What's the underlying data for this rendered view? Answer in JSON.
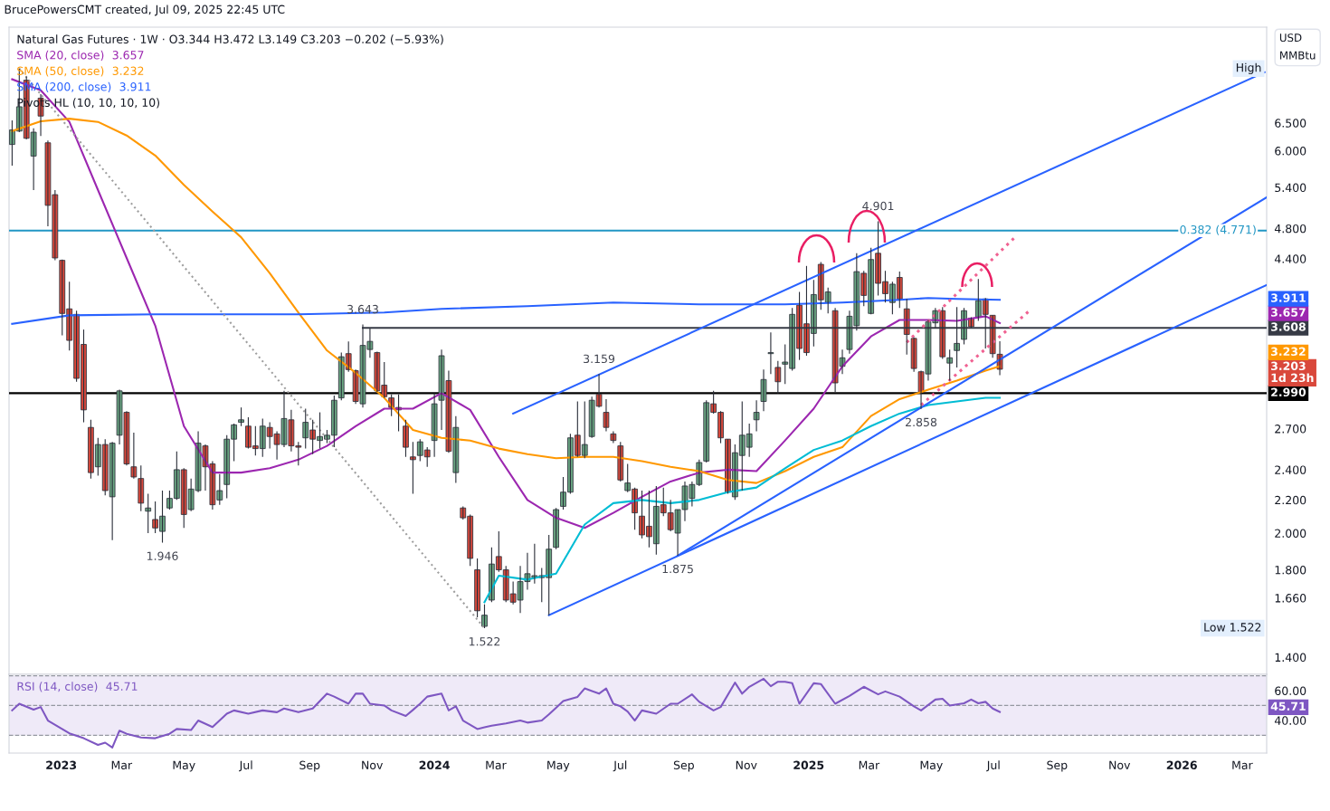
{
  "chart_data": [
    {
      "type": "candlestick",
      "title": "Natural Gas Futures · 1W · O3.344 H3.472 L3.149 C3.203 −0.202 (−5.93%)",
      "ylabel": "USD\nMMBtu",
      "log": true,
      "legend": "top left",
      "tick_labels": "y",
      "xlim": [
        "2022-11-11",
        "2026-03-25"
      ],
      "ylim": [
        1.333,
        8.56
      ],
      "yticks": [
        {
          "value": 6.5,
          "label": "6.500"
        },
        {
          "value": 6,
          "label": "6.000"
        },
        {
          "value": 5.4,
          "label": "5.400"
        },
        {
          "value": 4.8,
          "label": "4.800"
        },
        {
          "value": 4.4,
          "label": "4.400"
        },
        {
          "value": 2.7,
          "label": "2.700"
        },
        {
          "value": 2.4,
          "label": "2.400"
        },
        {
          "value": 2.2,
          "label": "2.200"
        },
        {
          "value": 2.0,
          "label": "2.000"
        },
        {
          "value": 1.8,
          "label": "1.800"
        },
        {
          "value": 1.66,
          "label": "1.660"
        },
        {
          "value": 1.4,
          "label": "1.400"
        }
      ],
      "x": [
        "2022-11-14",
        "2022-11-21",
        "2022-11-28",
        "2022-12-05",
        "2022-12-12",
        "2022-12-19",
        "2022-12-26",
        "2023-01-02",
        "2023-01-09",
        "2023-01-16",
        "2023-01-23",
        "2023-01-30",
        "2023-02-06",
        "2023-02-13",
        "2023-02-20",
        "2023-02-27",
        "2023-03-06",
        "2023-03-13",
        "2023-03-20",
        "2023-03-27",
        "2023-04-03",
        "2023-04-10",
        "2023-04-17",
        "2023-04-24",
        "2023-05-01",
        "2023-05-08",
        "2023-05-15",
        "2023-05-22",
        "2023-05-29",
        "2023-06-05",
        "2023-06-12",
        "2023-06-19",
        "2023-06-26",
        "2023-07-03",
        "2023-07-10",
        "2023-07-17",
        "2023-07-24",
        "2023-07-31",
        "2023-08-07",
        "2023-08-14",
        "2023-08-21",
        "2023-08-28",
        "2023-09-04",
        "2023-09-11",
        "2023-09-18",
        "2023-09-25",
        "2023-10-02",
        "2023-10-09",
        "2023-10-16",
        "2023-10-23",
        "2023-10-30",
        "2023-11-06",
        "2023-11-13",
        "2023-11-20",
        "2023-11-27",
        "2023-12-04",
        "2023-12-11",
        "2023-12-18",
        "2023-12-25",
        "2024-01-01",
        "2024-01-08",
        "2024-01-15",
        "2024-01-22",
        "2024-01-29",
        "2024-02-05",
        "2024-02-12",
        "2024-02-19",
        "2024-02-26",
        "2024-03-04",
        "2024-03-11",
        "2024-03-18",
        "2024-03-25",
        "2024-04-01",
        "2024-04-08",
        "2024-04-15",
        "2024-04-22",
        "2024-04-29",
        "2024-05-06",
        "2024-05-13",
        "2024-05-20",
        "2024-05-27",
        "2024-06-03",
        "2024-06-10",
        "2024-06-17",
        "2024-06-24",
        "2024-07-01",
        "2024-07-08",
        "2024-07-15",
        "2024-07-22",
        "2024-07-29",
        "2024-08-05",
        "2024-08-12",
        "2024-08-19",
        "2024-08-26",
        "2024-09-02",
        "2024-09-09",
        "2024-09-16",
        "2024-09-23",
        "2024-09-30",
        "2024-10-07",
        "2024-10-14",
        "2024-10-21",
        "2024-10-28",
        "2024-11-04",
        "2024-11-11",
        "2024-11-18",
        "2024-11-25",
        "2024-12-02",
        "2024-12-09",
        "2024-12-16",
        "2024-12-23",
        "2024-12-30",
        "2025-01-06",
        "2025-01-13",
        "2025-01-20",
        "2025-01-27",
        "2025-02-03",
        "2025-02-10",
        "2025-02-17",
        "2025-02-24",
        "2025-03-03",
        "2025-03-10",
        "2025-03-17",
        "2025-03-24",
        "2025-03-31",
        "2025-04-07",
        "2025-04-14",
        "2025-04-21",
        "2025-04-28",
        "2025-05-05",
        "2025-05-12",
        "2025-05-19",
        "2025-05-26",
        "2025-06-02",
        "2025-06-09",
        "2025-06-16",
        "2025-06-23",
        "2025-06-30",
        "2025-07-07"
      ],
      "ohlc": [
        [
          6.11,
          6.55,
          5.75,
          6.37
        ],
        [
          6.35,
          7.6,
          6.33,
          6.81
        ],
        [
          7.35,
          7.43,
          6.2,
          6.22
        ],
        [
          5.91,
          6.4,
          5.36,
          6.33
        ],
        [
          6.98,
          7.06,
          6.26,
          6.63
        ],
        [
          6.14,
          6.18,
          4.83,
          5.13
        ],
        [
          5.29,
          5.36,
          4.38,
          4.41
        ],
        [
          4.38,
          4.39,
          3.53,
          3.76
        ],
        [
          3.81,
          4.12,
          3.38,
          3.48
        ],
        [
          3.75,
          3.79,
          3.09,
          3.12
        ],
        [
          3.44,
          3.59,
          2.75,
          2.85
        ],
        [
          2.71,
          2.77,
          2.34,
          2.38
        ],
        [
          2.42,
          2.63,
          2.36,
          2.58
        ],
        [
          2.58,
          2.62,
          2.23,
          2.26
        ],
        [
          2.22,
          2.6,
          1.96,
          2.59
        ],
        [
          2.65,
          3.02,
          2.58,
          3.01
        ],
        [
          2.83,
          2.84,
          2.43,
          2.44
        ],
        [
          2.42,
          2.67,
          2.34,
          2.35
        ],
        [
          2.34,
          2.43,
          2.13,
          2.18
        ],
        [
          2.13,
          2.24,
          2.0,
          2.15
        ],
        [
          2.08,
          2.19,
          2.0,
          2.03
        ],
        [
          2.01,
          2.26,
          1.946,
          2.1
        ],
        [
          2.15,
          2.26,
          2.14,
          2.21
        ],
        [
          2.21,
          2.53,
          2.2,
          2.4
        ],
        [
          2.4,
          2.41,
          2.03,
          2.11
        ],
        [
          2.14,
          2.34,
          2.13,
          2.27
        ],
        [
          2.26,
          2.68,
          2.25,
          2.59
        ],
        [
          2.57,
          2.58,
          2.26,
          2.42
        ],
        [
          2.44,
          2.46,
          2.14,
          2.17
        ],
        [
          2.2,
          2.37,
          2.17,
          2.26
        ],
        [
          2.3,
          2.65,
          2.21,
          2.62
        ],
        [
          2.62,
          2.74,
          2.46,
          2.73
        ],
        [
          2.75,
          2.87,
          2.72,
          2.77
        ],
        [
          2.72,
          2.79,
          2.55,
          2.56
        ],
        [
          2.57,
          2.72,
          2.5,
          2.55
        ],
        [
          2.55,
          2.78,
          2.49,
          2.72
        ],
        [
          2.71,
          2.75,
          2.55,
          2.64
        ],
        [
          2.66,
          2.68,
          2.47,
          2.58
        ],
        [
          2.58,
          3.01,
          2.56,
          2.78
        ],
        [
          2.77,
          2.85,
          2.53,
          2.57
        ],
        [
          2.57,
          2.6,
          2.43,
          2.56
        ],
        [
          2.63,
          2.86,
          2.55,
          2.75
        ],
        [
          2.69,
          2.77,
          2.51,
          2.62
        ],
        [
          2.61,
          2.83,
          2.55,
          2.64
        ],
        [
          2.62,
          2.69,
          2.59,
          2.65
        ],
        [
          2.65,
          2.97,
          2.56,
          2.93
        ],
        [
          2.95,
          3.36,
          2.93,
          3.32
        ],
        [
          3.35,
          3.47,
          3.18,
          3.2
        ],
        [
          3.19,
          3.2,
          2.9,
          2.92
        ],
        [
          2.9,
          3.643,
          2.87,
          3.43
        ],
        [
          3.39,
          3.6,
          3.31,
          3.47
        ],
        [
          3.36,
          3.37,
          3.0,
          3.01
        ],
        [
          3.06,
          3.27,
          2.95,
          2.96
        ],
        [
          2.95,
          2.98,
          2.8,
          2.87
        ],
        [
          2.87,
          2.98,
          2.68,
          2.85
        ],
        [
          2.72,
          2.77,
          2.49,
          2.56
        ],
        [
          2.49,
          2.6,
          2.24,
          2.47
        ],
        [
          2.5,
          2.62,
          2.46,
          2.6
        ],
        [
          2.54,
          2.56,
          2.42,
          2.49
        ],
        [
          2.61,
          2.99,
          2.49,
          2.9
        ],
        [
          2.93,
          3.39,
          2.69,
          3.33
        ],
        [
          3.1,
          3.19,
          2.52,
          2.53
        ],
        [
          2.38,
          2.8,
          2.31,
          2.71
        ],
        [
          2.15,
          2.16,
          2.08,
          2.09
        ],
        [
          2.1,
          2.11,
          1.82,
          1.86
        ],
        [
          1.8,
          1.86,
          1.57,
          1.6
        ],
        [
          1.53,
          1.63,
          1.522,
          1.58
        ],
        [
          1.65,
          1.92,
          1.64,
          1.83
        ],
        [
          1.87,
          2.01,
          1.79,
          1.8
        ],
        [
          1.8,
          1.82,
          1.64,
          1.65
        ],
        [
          1.68,
          1.74,
          1.63,
          1.64
        ],
        [
          1.65,
          1.82,
          1.59,
          1.74
        ],
        [
          1.74,
          1.89,
          1.7,
          1.78
        ],
        [
          1.76,
          1.94,
          1.73,
          1.77
        ],
        [
          1.77,
          1.81,
          1.64,
          1.76
        ],
        [
          1.76,
          1.99,
          1.58,
          1.91
        ],
        [
          1.92,
          2.15,
          1.91,
          2.14
        ],
        [
          2.16,
          2.35,
          2.14,
          2.25
        ],
        [
          2.25,
          2.66,
          2.24,
          2.63
        ],
        [
          2.65,
          2.92,
          2.49,
          2.5
        ],
        [
          2.5,
          2.92,
          2.48,
          2.58
        ],
        [
          2.64,
          2.96,
          2.63,
          2.93
        ],
        [
          2.98,
          3.159,
          2.87,
          2.88
        ],
        [
          2.83,
          2.94,
          2.68,
          2.71
        ],
        [
          2.66,
          2.68,
          2.59,
          2.61
        ],
        [
          2.57,
          2.6,
          2.32,
          2.33
        ],
        [
          2.26,
          2.44,
          2.25,
          2.31
        ],
        [
          2.27,
          2.28,
          2.02,
          2.12
        ],
        [
          2.1,
          2.26,
          1.97,
          1.99
        ],
        [
          2.04,
          2.26,
          1.92,
          1.98
        ],
        [
          1.94,
          2.29,
          1.88,
          2.16
        ],
        [
          2.17,
          2.28,
          2.1,
          2.12
        ],
        [
          2.12,
          2.2,
          2.01,
          2.02
        ],
        [
          2.0,
          2.14,
          1.875,
          2.14
        ],
        [
          2.14,
          2.32,
          2.07,
          2.29
        ],
        [
          2.21,
          2.32,
          2.16,
          2.3
        ],
        [
          2.3,
          2.47,
          2.29,
          2.45
        ],
        [
          2.46,
          2.93,
          2.45,
          2.91
        ],
        [
          2.9,
          3.01,
          2.82,
          2.83
        ],
        [
          2.83,
          2.84,
          2.59,
          2.63
        ],
        [
          2.62,
          2.62,
          2.24,
          2.25
        ],
        [
          2.22,
          2.58,
          2.2,
          2.52
        ],
        [
          2.5,
          2.92,
          2.26,
          2.65
        ],
        [
          2.56,
          2.74,
          2.49,
          2.66
        ],
        [
          2.77,
          2.93,
          2.68,
          2.83
        ],
        [
          2.92,
          3.2,
          2.84,
          3.11
        ],
        [
          3.35,
          3.56,
          3.16,
          3.36
        ],
        [
          3.22,
          3.28,
          2.99,
          3.09
        ],
        [
          3.25,
          3.44,
          3.07,
          3.27
        ],
        [
          3.21,
          3.82,
          3.19,
          3.75
        ],
        [
          3.85,
          4.0,
          3.29,
          3.4
        ],
        [
          3.65,
          4.31,
          3.33,
          3.36
        ],
        [
          3.55,
          4.14,
          3.42,
          3.97
        ],
        [
          4.33,
          4.36,
          3.8,
          3.91
        ],
        [
          3.88,
          4.05,
          3.76,
          4.0
        ],
        [
          3.79,
          3.82,
          3.0,
          3.08
        ],
        [
          3.23,
          3.39,
          3.16,
          3.31
        ],
        [
          3.39,
          3.79,
          3.35,
          3.73
        ],
        [
          3.63,
          4.47,
          3.58,
          4.24
        ],
        [
          4.22,
          4.25,
          3.84,
          3.96
        ],
        [
          3.76,
          4.54,
          3.75,
          4.39
        ],
        [
          4.47,
          4.901,
          3.96,
          4.1
        ],
        [
          4.12,
          4.25,
          3.88,
          3.98
        ],
        [
          3.88,
          4.12,
          3.75,
          4.09
        ],
        [
          4.17,
          4.24,
          3.82,
          3.92
        ],
        [
          3.81,
          3.92,
          3.34,
          3.54
        ],
        [
          3.5,
          3.51,
          3.18,
          3.21
        ],
        [
          3.18,
          3.19,
          2.858,
          3.0
        ],
        [
          3.16,
          3.69,
          3.1,
          3.67
        ],
        [
          3.66,
          3.82,
          3.61,
          3.79
        ],
        [
          3.79,
          3.83,
          3.3,
          3.32
        ],
        [
          3.26,
          3.39,
          3.1,
          3.31
        ],
        [
          3.38,
          3.83,
          3.22,
          3.45
        ],
        [
          3.49,
          3.82,
          3.44,
          3.79
        ],
        [
          3.71,
          3.72,
          3.61,
          3.62
        ],
        [
          3.72,
          4.15,
          3.68,
          3.9
        ],
        [
          3.92,
          3.93,
          3.4,
          3.75
        ],
        [
          3.74,
          3.74,
          3.31,
          3.35
        ],
        [
          3.344,
          3.472,
          3.149,
          3.203
        ]
      ],
      "value_labels": [
        null,
        null,
        null,
        null,
        null,
        null,
        null,
        null,
        null,
        null,
        null,
        null,
        null,
        null,
        null,
        null,
        null,
        null,
        null,
        null,
        null,
        null,
        null,
        null,
        null,
        null,
        null,
        null,
        null,
        null,
        null,
        null,
        null,
        null,
        null,
        null,
        null,
        null,
        null,
        null,
        null,
        null,
        null,
        null,
        null,
        null,
        null,
        null,
        null,
        null,
        null,
        null,
        null,
        null,
        null,
        null,
        null,
        null,
        null,
        null,
        null,
        null,
        null,
        null,
        null,
        null,
        null,
        null,
        null,
        null,
        null,
        null,
        null,
        null,
        null,
        null,
        null,
        null,
        null,
        null,
        null,
        null,
        null,
        null,
        null,
        null,
        null,
        null,
        null,
        null,
        null,
        null,
        null,
        null,
        null,
        null,
        null,
        null,
        null,
        null,
        null,
        null,
        null,
        null,
        null,
        null,
        null,
        null,
        null,
        null,
        null,
        null,
        null,
        null,
        null,
        null,
        null,
        null,
        null,
        null,
        null,
        null,
        null,
        null,
        null,
        null,
        null,
        null,
        null,
        null,
        null,
        null,
        null,
        null,
        null,
        null,
        null,
        null,
        "3.203\n1d 23h"
      ],
      "series": [
        {
          "type": "line",
          "name": "SMA (20, close)",
          "color": "#9c27b0",
          "x": [
            "2022-11-14",
            "2022-12-12",
            "2023-01-09",
            "2023-02-06",
            "2023-03-06",
            "2023-04-03",
            "2023-05-01",
            "2023-05-29",
            "2023-06-26",
            "2023-07-24",
            "2023-08-21",
            "2023-09-18",
            "2023-10-16",
            "2023-11-13",
            "2023-12-11",
            "2024-01-08",
            "2024-02-05",
            "2024-03-04",
            "2024-04-01",
            "2024-04-29",
            "2024-05-27",
            "2024-06-24",
            "2024-07-22",
            "2024-08-19",
            "2024-09-16",
            "2024-10-14",
            "2024-11-11",
            "2024-12-09",
            "2025-01-06",
            "2025-02-03",
            "2025-03-03",
            "2025-03-31",
            "2025-04-28",
            "2025-05-26",
            "2025-06-23",
            "2025-07-07"
          ],
          "values": [
            7.37,
            7.14,
            6.52,
            5.36,
            4.41,
            3.63,
            2.72,
            2.38,
            2.38,
            2.41,
            2.47,
            2.57,
            2.72,
            2.86,
            2.86,
            2.99,
            2.85,
            2.49,
            2.2,
            2.09,
            2.03,
            2.12,
            2.22,
            2.32,
            2.38,
            2.4,
            2.39,
            2.61,
            2.86,
            3.23,
            3.52,
            3.69,
            3.69,
            3.68,
            3.73,
            3.657
          ]
        },
        {
          "type": "line",
          "name": "SMA (50, close)",
          "color": "#ff9800",
          "x": [
            "2022-11-14",
            "2022-12-12",
            "2023-01-09",
            "2023-02-06",
            "2023-03-06",
            "2023-04-03",
            "2023-05-01",
            "2023-05-29",
            "2023-06-26",
            "2023-07-24",
            "2023-08-21",
            "2023-09-18",
            "2023-10-16",
            "2023-11-13",
            "2023-12-11",
            "2024-01-08",
            "2024-02-05",
            "2024-03-04",
            "2024-04-01",
            "2024-04-29",
            "2024-05-27",
            "2024-06-24",
            "2024-07-22",
            "2024-08-19",
            "2024-09-16",
            "2024-10-14",
            "2024-11-11",
            "2024-12-09",
            "2025-01-06",
            "2025-02-03",
            "2025-03-03",
            "2025-03-31",
            "2025-04-28",
            "2025-05-26",
            "2025-06-23",
            "2025-07-07"
          ],
          "values": [
            6.35,
            6.53,
            6.58,
            6.52,
            6.27,
            5.92,
            5.44,
            5.04,
            4.68,
            4.22,
            3.77,
            3.38,
            3.17,
            2.95,
            2.69,
            2.63,
            2.61,
            2.55,
            2.51,
            2.48,
            2.49,
            2.49,
            2.46,
            2.42,
            2.39,
            2.33,
            2.31,
            2.39,
            2.49,
            2.56,
            2.8,
            2.94,
            3.02,
            3.1,
            3.19,
            3.232
          ]
        },
        {
          "type": "line",
          "name": "SMA (200, close)",
          "color": "#2962ff",
          "x": [
            "2022-11-14",
            "2023-01-09",
            "2023-04-03",
            "2023-08-21",
            "2023-11-13",
            "2024-01-08",
            "2024-04-01",
            "2024-06-24",
            "2024-09-16",
            "2024-12-09",
            "2025-02-03",
            "2025-03-31",
            "2025-04-28",
            "2025-05-26",
            "2025-07-07"
          ],
          "values": [
            3.65,
            3.74,
            3.75,
            3.75,
            3.77,
            3.81,
            3.84,
            3.88,
            3.86,
            3.86,
            3.88,
            3.91,
            3.93,
            3.92,
            3.911
          ]
        },
        {
          "type": "line",
          "color": "#00bcd4",
          "x": [
            "2024-02-19",
            "2024-03-04",
            "2024-04-01",
            "2024-04-29",
            "2024-05-27",
            "2024-06-24",
            "2024-07-22",
            "2024-08-19",
            "2024-09-16",
            "2024-10-14",
            "2024-11-11",
            "2024-12-09",
            "2025-01-06",
            "2025-02-03",
            "2025-03-03",
            "2025-03-31",
            "2025-04-28",
            "2025-05-26",
            "2025-06-23",
            "2025-07-07"
          ],
          "values": [
            1.64,
            1.77,
            1.75,
            1.78,
            2.05,
            2.18,
            2.2,
            2.18,
            2.2,
            2.25,
            2.28,
            2.41,
            2.54,
            2.61,
            2.72,
            2.82,
            2.89,
            2.92,
            2.95,
            2.95
          ]
        },
        {
          "type": "line",
          "color": "#363a45",
          "x": [
            "2023-10-23",
            "2026-03-25"
          ],
          "values": [
            3.608,
            3.608
          ],
          "value_labels": [
            null,
            "3.608"
          ]
        },
        {
          "type": "line",
          "color": "#2962ff",
          "x": [
            "2024-03-18",
            "2026-03-23"
          ],
          "values": [
            2.82,
            7.52
          ]
        },
        {
          "type": "line",
          "color": "#2962ff",
          "x": [
            "2024-04-22",
            "2026-03-25"
          ],
          "values": [
            1.58,
            4.08
          ]
        },
        {
          "type": "line",
          "color": "#2962ff",
          "x": [
            "2024-08-26",
            "2026-03-25"
          ],
          "values": [
            1.875,
            5.25
          ]
        },
        {
          "type": "line",
          "color": "#9e9e9e",
          "line_style": "dotted",
          "x": [
            "2022-11-21",
            "2024-02-19"
          ],
          "values": [
            7.6,
            1.522
          ]
        },
        {
          "type": "line",
          "color": "#f06292",
          "line_style": "dotted",
          "x": [
            "2025-04-07",
            "2025-07-21"
          ],
          "values": [
            3.46,
            4.67
          ]
        },
        {
          "type": "line",
          "color": "#f06292",
          "line_style": "dotted",
          "x": [
            "2025-04-21",
            "2025-08-04"
          ],
          "values": [
            2.89,
            3.78
          ]
        }
      ],
      "ref_lines": [
        {
          "axis": "y",
          "value": 2.99,
          "label": "2.990",
          "color": "#000000"
        },
        {
          "axis": "y",
          "value": 4.771,
          "label": "0.382 (4.771)",
          "color": "#2196c4"
        }
      ],
      "annotations": [
        "BrucePowersCMT created, Jul 09, 2025 22:45 UTC",
        "Pivots HL (10, 10, 10, 10)",
        "High",
        "Low 1.522",
        "3.657",
        "3.232",
        "3.911",
        {
          "text": "3.643",
          "x": "2023-10-23",
          "y": 3.643
        },
        {
          "text": "3.159",
          "x": "2024-06-10",
          "y": 3.159
        },
        {
          "text": "4.901",
          "x": "2025-03-10",
          "y": 4.901
        },
        {
          "text": "1.946",
          "x": "2023-04-10",
          "y": 1.946
        },
        {
          "text": "1.522",
          "x": "2024-02-19",
          "y": 1.522
        },
        {
          "text": "1.875",
          "x": "2024-08-26",
          "y": 1.875
        },
        {
          "text": "2.858",
          "x": "2025-04-21",
          "y": 2.858
        }
      ]
    },
    {
      "type": "line",
      "legend": "top left",
      "xlim": [
        "2022-11-11",
        "2026-03-25"
      ],
      "ylim": [
        18,
        71
      ],
      "yticks": [
        {
          "value": 60,
          "label": "60.00"
        },
        {
          "value": 40,
          "label": "40.00"
        }
      ],
      "xticks": [
        {
          "value": "2023-01-01",
          "label": "2023"
        },
        {
          "value": "2023-03-01",
          "label": "Mar"
        },
        {
          "value": "2023-05-01",
          "label": "May"
        },
        {
          "value": "2023-07-01",
          "label": "Jul"
        },
        {
          "value": "2023-09-01",
          "label": "Sep"
        },
        {
          "value": "2023-11-01",
          "label": "Nov"
        },
        {
          "value": "2024-01-01",
          "label": "2024"
        },
        {
          "value": "2024-03-01",
          "label": "Mar"
        },
        {
          "value": "2024-05-01",
          "label": "May"
        },
        {
          "value": "2024-07-01",
          "label": "Jul"
        },
        {
          "value": "2024-09-01",
          "label": "Sep"
        },
        {
          "value": "2024-11-01",
          "label": "Nov"
        },
        {
          "value": "2025-01-01",
          "label": "2025"
        },
        {
          "value": "2025-03-01",
          "label": "Mar"
        },
        {
          "value": "2025-05-01",
          "label": "May"
        },
        {
          "value": "2025-07-01",
          "label": "Jul"
        },
        {
          "value": "2025-09-01",
          "label": "Sep"
        },
        {
          "value": "2025-11-01",
          "label": "Nov"
        },
        {
          "value": "2026-01-01",
          "label": "2026"
        },
        {
          "value": "2026-03-01",
          "label": "Mar"
        }
      ],
      "bands": [
        {
          "axis": "y",
          "from": 30,
          "to": 70,
          "color": "#efeaf8"
        }
      ],
      "ref_lines": [
        {
          "axis": "y",
          "value": 70,
          "color": "#9598a1",
          "line_style": "dashed"
        },
        {
          "axis": "y",
          "value": 50,
          "color": "#9598a1",
          "line_style": "dashed"
        },
        {
          "axis": "y",
          "value": 30,
          "color": "#9598a1",
          "line_style": "dashed"
        }
      ],
      "series": [
        {
          "name": "RSI (14, close)",
          "color": "#7e57c2",
          "x": [
            "2022-11-14",
            "2022-11-21",
            "2022-12-05",
            "2022-12-12",
            "2022-12-19",
            "2023-01-09",
            "2023-01-23",
            "2023-02-06",
            "2023-02-13",
            "2023-02-20",
            "2023-02-27",
            "2023-03-06",
            "2023-03-20",
            "2023-04-03",
            "2023-04-17",
            "2023-04-24",
            "2023-05-08",
            "2023-05-15",
            "2023-05-29",
            "2023-06-12",
            "2023-06-19",
            "2023-07-03",
            "2023-07-17",
            "2023-07-31",
            "2023-08-07",
            "2023-08-21",
            "2023-09-04",
            "2023-09-18",
            "2023-09-25",
            "2023-10-09",
            "2023-10-16",
            "2023-10-23",
            "2023-10-30",
            "2023-11-13",
            "2023-11-20",
            "2023-12-04",
            "2023-12-11",
            "2023-12-18",
            "2023-12-25",
            "2024-01-08",
            "2024-01-15",
            "2024-01-22",
            "2024-01-29",
            "2024-02-12",
            "2024-02-19",
            "2024-02-26",
            "2024-03-11",
            "2024-03-25",
            "2024-04-01",
            "2024-04-15",
            "2024-04-22",
            "2024-04-29",
            "2024-05-06",
            "2024-05-20",
            "2024-05-27",
            "2024-06-10",
            "2024-06-17",
            "2024-06-24",
            "2024-07-01",
            "2024-07-08",
            "2024-07-15",
            "2024-07-22",
            "2024-08-05",
            "2024-08-19",
            "2024-08-26",
            "2024-09-09",
            "2024-09-16",
            "2024-09-30",
            "2024-10-07",
            "2024-10-21",
            "2024-10-28",
            "2024-11-04",
            "2024-11-18",
            "2024-11-25",
            "2024-12-02",
            "2024-12-09",
            "2024-12-16",
            "2024-12-23",
            "2025-01-06",
            "2025-01-13",
            "2025-01-27",
            "2025-02-10",
            "2025-02-24",
            "2025-03-10",
            "2025-03-17",
            "2025-03-31",
            "2025-04-14",
            "2025-04-21",
            "2025-05-05",
            "2025-05-12",
            "2025-05-19",
            "2025-06-02",
            "2025-06-09",
            "2025-06-16",
            "2025-06-23",
            "2025-06-30",
            "2025-07-07"
          ],
          "values": [
            46.7,
            51.2,
            47.2,
            49.0,
            39.9,
            31.3,
            28.0,
            23.5,
            25.0,
            21.7,
            33.1,
            31.0,
            28.5,
            28.0,
            31.0,
            34.2,
            33.5,
            39.9,
            35.5,
            44.5,
            46.7,
            44.5,
            46.7,
            45.5,
            48.0,
            45.5,
            48.0,
            58.0,
            56.0,
            51.2,
            58.0,
            58.0,
            51.2,
            50.0,
            46.7,
            43.0,
            47.0,
            51.2,
            56.0,
            58.0,
            46.7,
            49.5,
            39.9,
            34.2,
            35.3,
            36.4,
            38.0,
            39.9,
            38.5,
            39.9,
            44.0,
            48.5,
            53.0,
            55.8,
            61.5,
            58.0,
            61.5,
            51.2,
            49.5,
            46.0,
            39.9,
            46.7,
            44.5,
            51.2,
            51.2,
            57.5,
            52.5,
            46.7,
            49.0,
            65.4,
            58.0,
            62.6,
            68.0,
            63.0,
            66.0,
            66.0,
            65.0,
            51.2,
            65.0,
            64.5,
            51.2,
            56.5,
            62.6,
            57.5,
            59.5,
            56.0,
            49.5,
            46.7,
            54.0,
            54.5,
            50.0,
            51.5,
            54.0,
            51.5,
            52.5,
            48.0,
            45.71
          ]
        }
      ],
      "annotations": [
        "45.71"
      ],
      "tick_labels": true
    }
  ]
}
